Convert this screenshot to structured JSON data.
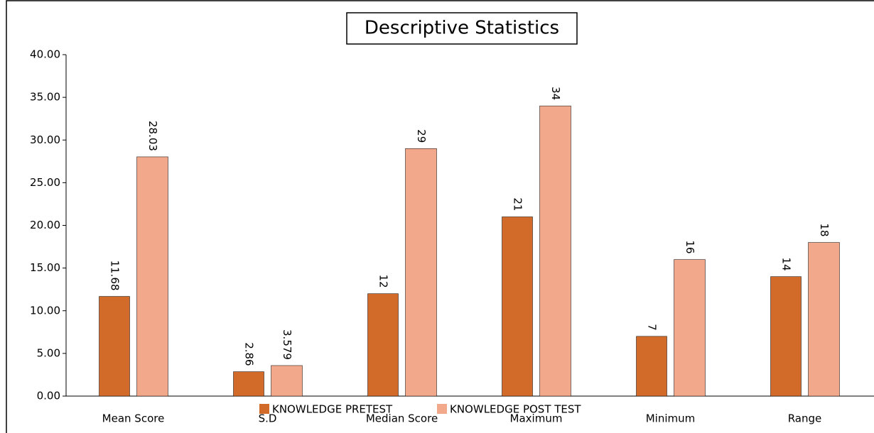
{
  "chart_data": {
    "type": "bar",
    "title": "Descriptive Statistics",
    "categories": [
      "Mean Score",
      "S.D",
      "Median Score",
      "Maximum",
      "Minimum",
      "Range"
    ],
    "series": [
      {
        "name": "KNOWLEDGE PRETEST",
        "color": "#d26b2a",
        "values": [
          11.68,
          2.86,
          12,
          21,
          7,
          14
        ]
      },
      {
        "name": "KNOWLEDGE POST TEST",
        "color": "#f2a88a",
        "values": [
          28.03,
          3.579,
          29,
          34,
          16,
          18
        ]
      }
    ],
    "ylim": [
      0,
      40
    ],
    "yticks": [
      {
        "value": 0,
        "label": "0.00"
      },
      {
        "value": 5,
        "label": "5.00"
      },
      {
        "value": 10,
        "label": "10.00"
      },
      {
        "value": 15,
        "label": "15.00"
      },
      {
        "value": 20,
        "label": "20.00"
      },
      {
        "value": 25,
        "label": "25.00"
      },
      {
        "value": 30,
        "label": "30.00"
      },
      {
        "value": 35,
        "label": "35.00"
      },
      {
        "value": 40,
        "label": "40.00"
      }
    ],
    "grid": false,
    "legend": "bottom"
  }
}
